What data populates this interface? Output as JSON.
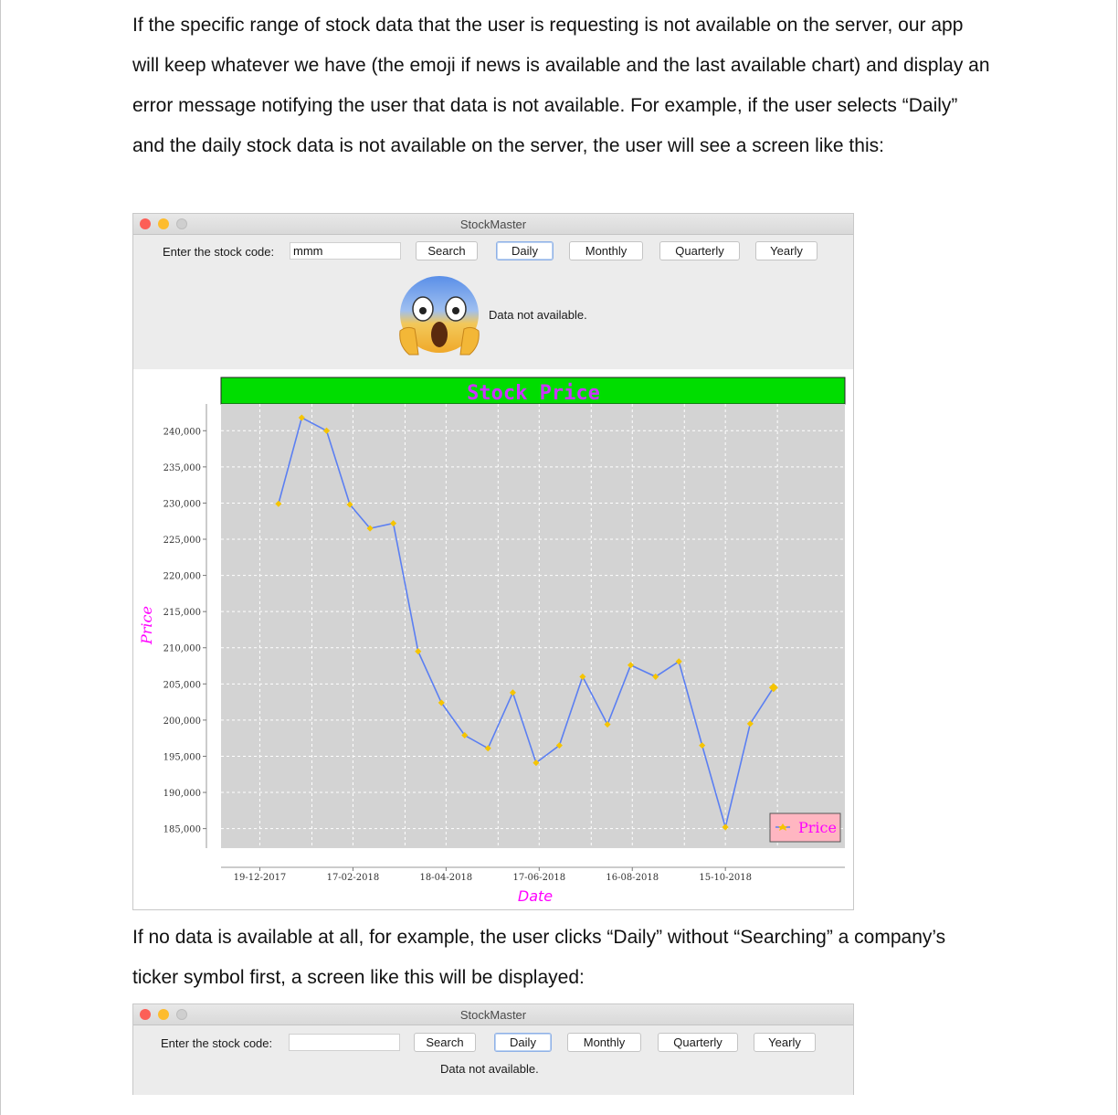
{
  "paragraphs": {
    "intro": "If the specific range of stock data that the user is requesting is not available on the server, our app will keep whatever we have (the emoji if news is available and the last available chart) and display an error message notifying the user that data is not available. For example, if the user selects “Daily” and the daily stock data is not available on the server, the user will see a screen like this:",
    "second": "If no data is available at all, for example, the user clicks “Daily” without “Searching” a company’s ticker symbol first, a screen like this will be displayed:"
  },
  "window1": {
    "title": "StockMaster",
    "code_label": "Enter the stock code:",
    "code_value": "mmm",
    "buttons": {
      "search": "Search",
      "daily": "Daily",
      "monthly": "Monthly",
      "quarterly": "Quarterly",
      "yearly": "Yearly"
    },
    "message": "Data not available.",
    "emoji_icon": "face-screaming-in-fear-icon"
  },
  "window2": {
    "title": "StockMaster",
    "code_label": "Enter the stock code:",
    "code_value": "",
    "buttons": {
      "search": "Search",
      "daily": "Daily",
      "monthly": "Monthly",
      "quarterly": "Quarterly",
      "yearly": "Yearly"
    },
    "message": "Data not available."
  },
  "colors": {
    "title_bar": "#00dd00",
    "title_text": "#cc33ff",
    "plot_bg": "#d3d3d3",
    "line": "#5b7ff2",
    "marker": "#f5c400",
    "axis_label": "#ff00ff",
    "legend_bg": "#ffb6c1"
  },
  "chart_data": {
    "type": "line",
    "title": "Stock Price",
    "xlabel": "Date",
    "ylabel": "Price",
    "x_tick_labels": [
      "19-12-2017",
      "17-02-2018",
      "18-04-2018",
      "17-06-2018",
      "16-08-2018",
      "15-10-2018"
    ],
    "y_ticks": [
      185000,
      190000,
      195000,
      200000,
      205000,
      210000,
      215000,
      220000,
      225000,
      230000,
      235000,
      240000
    ],
    "y_tick_labels": [
      "185,000",
      "190,000",
      "195,000",
      "200,000",
      "205,000",
      "210,000",
      "215,000",
      "220,000",
      "225,000",
      "230,000",
      "235,000",
      "240,000"
    ],
    "ylim": [
      182300,
      243700
    ],
    "xlim": [
      "2017-11-24",
      "2018-12-31"
    ],
    "grid": true,
    "legend_position": "bottom-right",
    "series": [
      {
        "name": "Price",
        "points": [
          {
            "x": "2017-12-31",
            "y": 229900
          },
          {
            "x": "2018-01-15",
            "y": 241800
          },
          {
            "x": "2018-01-31",
            "y": 240000
          },
          {
            "x": "2018-02-15",
            "y": 229800
          },
          {
            "x": "2018-02-28",
            "y": 226500
          },
          {
            "x": "2018-03-15",
            "y": 227200
          },
          {
            "x": "2018-03-31",
            "y": 209500
          },
          {
            "x": "2018-04-15",
            "y": 202400
          },
          {
            "x": "2018-04-30",
            "y": 197900
          },
          {
            "x": "2018-05-15",
            "y": 196100
          },
          {
            "x": "2018-05-31",
            "y": 203800
          },
          {
            "x": "2018-06-15",
            "y": 194100
          },
          {
            "x": "2018-06-30",
            "y": 196500
          },
          {
            "x": "2018-07-15",
            "y": 206000
          },
          {
            "x": "2018-07-31",
            "y": 199400
          },
          {
            "x": "2018-08-15",
            "y": 207600
          },
          {
            "x": "2018-08-31",
            "y": 206000
          },
          {
            "x": "2018-09-15",
            "y": 208100
          },
          {
            "x": "2018-09-30",
            "y": 196500
          },
          {
            "x": "2018-10-15",
            "y": 185200
          },
          {
            "x": "2018-10-31",
            "y": 199500
          },
          {
            "x": "2018-11-15",
            "y": 204500
          }
        ]
      }
    ]
  }
}
